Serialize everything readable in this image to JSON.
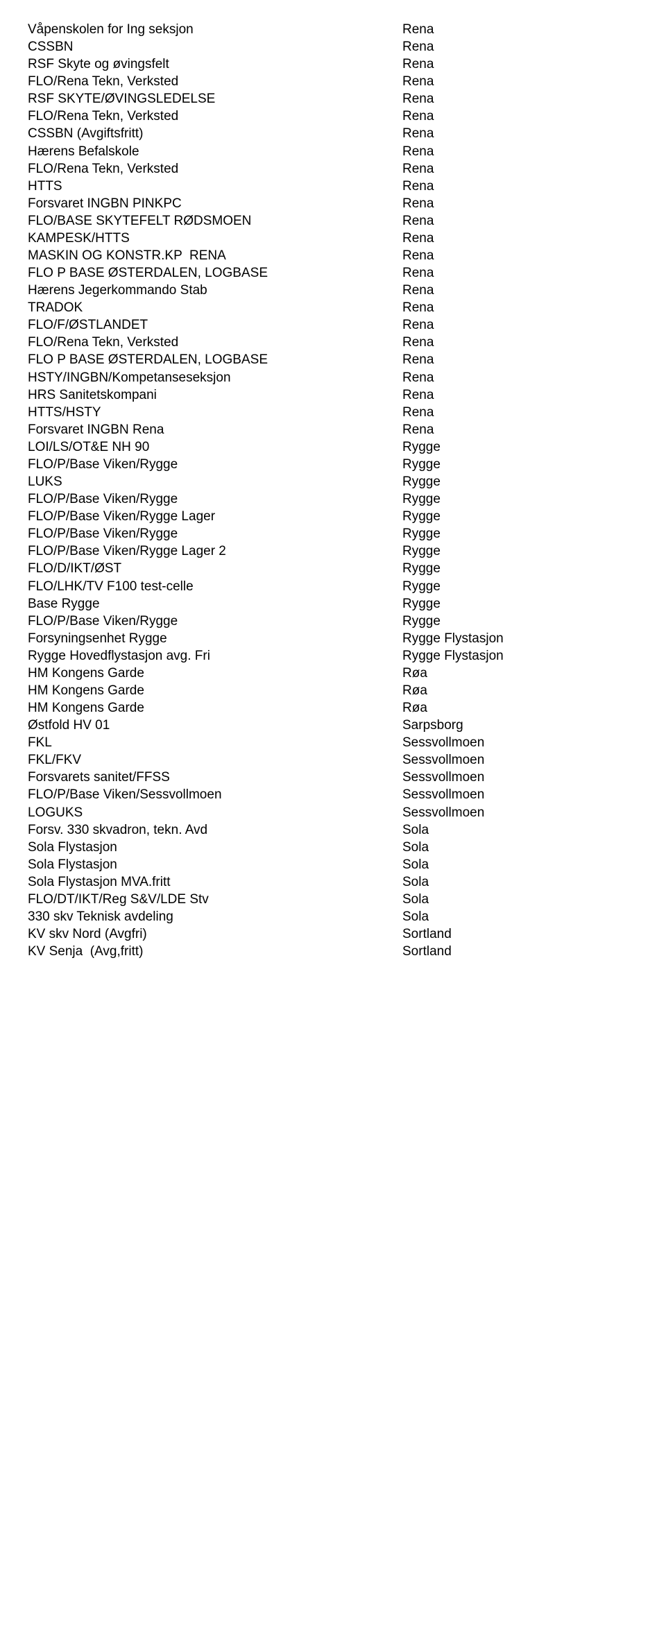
{
  "rows": [
    {
      "a": "Våpenskolen for Ing seksjon",
      "b": "Rena"
    },
    {
      "a": "CSSBN",
      "b": "Rena"
    },
    {
      "a": "RSF Skyte og øvingsfelt",
      "b": "Rena"
    },
    {
      "a": "FLO/Rena Tekn, Verksted",
      "b": "Rena"
    },
    {
      "a": "RSF SKYTE/ØVINGSLEDELSE",
      "b": "Rena"
    },
    {
      "a": "FLO/Rena Tekn, Verksted",
      "b": "Rena"
    },
    {
      "a": "CSSBN (Avgiftsfritt)",
      "b": "Rena"
    },
    {
      "a": "Hærens Befalskole",
      "b": "Rena"
    },
    {
      "a": "FLO/Rena Tekn, Verksted",
      "b": "Rena"
    },
    {
      "a": "HTTS",
      "b": "Rena"
    },
    {
      "a": "Forsvaret INGBN PINKPC",
      "b": "Rena"
    },
    {
      "a": "FLO/BASE SKYTEFELT RØDSMOEN",
      "b": "Rena"
    },
    {
      "a": "KAMPESK/HTTS",
      "b": "Rena"
    },
    {
      "a": "MASKIN OG KONSTR.KP  RENA",
      "b": "Rena"
    },
    {
      "a": "FLO P BASE ØSTERDALEN, LOGBASE",
      "b": "Rena"
    },
    {
      "a": "Hærens Jegerkommando Stab",
      "b": "Rena"
    },
    {
      "a": "TRADOK",
      "b": "Rena"
    },
    {
      "a": "FLO/F/ØSTLANDET",
      "b": "Rena"
    },
    {
      "a": "FLO/Rena Tekn, Verksted",
      "b": "Rena"
    },
    {
      "a": "FLO P BASE ØSTERDALEN, LOGBASE",
      "b": "Rena"
    },
    {
      "a": "HSTY/INGBN/Kompetanseseksjon",
      "b": "Rena"
    },
    {
      "a": "HRS Sanitetskompani",
      "b": "Rena"
    },
    {
      "a": "HTTS/HSTY",
      "b": "Rena"
    },
    {
      "a": "Forsvaret INGBN Rena",
      "b": "Rena"
    },
    {
      "a": "LOI/LS/OT&E NH 90",
      "b": "Rygge"
    },
    {
      "a": "FLO/P/Base Viken/Rygge",
      "b": "Rygge"
    },
    {
      "a": "LUKS",
      "b": "Rygge"
    },
    {
      "a": "FLO/P/Base Viken/Rygge",
      "b": "Rygge"
    },
    {
      "a": "FLO/P/Base Viken/Rygge Lager",
      "b": "Rygge"
    },
    {
      "a": "FLO/P/Base Viken/Rygge",
      "b": "Rygge"
    },
    {
      "a": "FLO/P/Base Viken/Rygge Lager 2",
      "b": "Rygge"
    },
    {
      "a": "FLO/D/IKT/ØST",
      "b": "Rygge"
    },
    {
      "a": "FLO/LHK/TV F100 test-celle",
      "b": "Rygge"
    },
    {
      "a": "Base Rygge",
      "b": "Rygge"
    },
    {
      "a": "FLO/P/Base Viken/Rygge",
      "b": "Rygge"
    },
    {
      "a": "Forsyningsenhet Rygge",
      "b": "Rygge Flystasjon"
    },
    {
      "a": "Rygge Hovedflystasjon avg. Fri",
      "b": "Rygge Flystasjon"
    },
    {
      "a": "HM Kongens Garde",
      "b": "Røa"
    },
    {
      "a": "HM Kongens Garde",
      "b": "Røa"
    },
    {
      "a": "HM Kongens Garde",
      "b": "Røa"
    },
    {
      "a": "Østfold HV 01",
      "b": "Sarpsborg"
    },
    {
      "a": "FKL",
      "b": "Sessvollmoen"
    },
    {
      "a": "FKL/FKV",
      "b": "Sessvollmoen"
    },
    {
      "a": "Forsvarets sanitet/FFSS",
      "b": "Sessvollmoen"
    },
    {
      "a": "FLO/P/Base Viken/Sessvollmoen",
      "b": "Sessvollmoen"
    },
    {
      "a": "LOGUKS",
      "b": "Sessvollmoen"
    },
    {
      "a": "Forsv. 330 skvadron, tekn. Avd",
      "b": "Sola"
    },
    {
      "a": "Sola Flystasjon",
      "b": "Sola"
    },
    {
      "a": "Sola Flystasjon",
      "b": "Sola"
    },
    {
      "a": "Sola Flystasjon MVA.fritt",
      "b": "Sola"
    },
    {
      "a": "FLO/DT/IKT/Reg S&V/LDE Stv",
      "b": "Sola"
    },
    {
      "a": "330 skv Teknisk avdeling",
      "b": "Sola"
    },
    {
      "a": "KV skv Nord (Avgfri)",
      "b": "Sortland"
    },
    {
      "a": "KV Senja  (Avg,fritt)",
      "b": "Sortland"
    }
  ]
}
